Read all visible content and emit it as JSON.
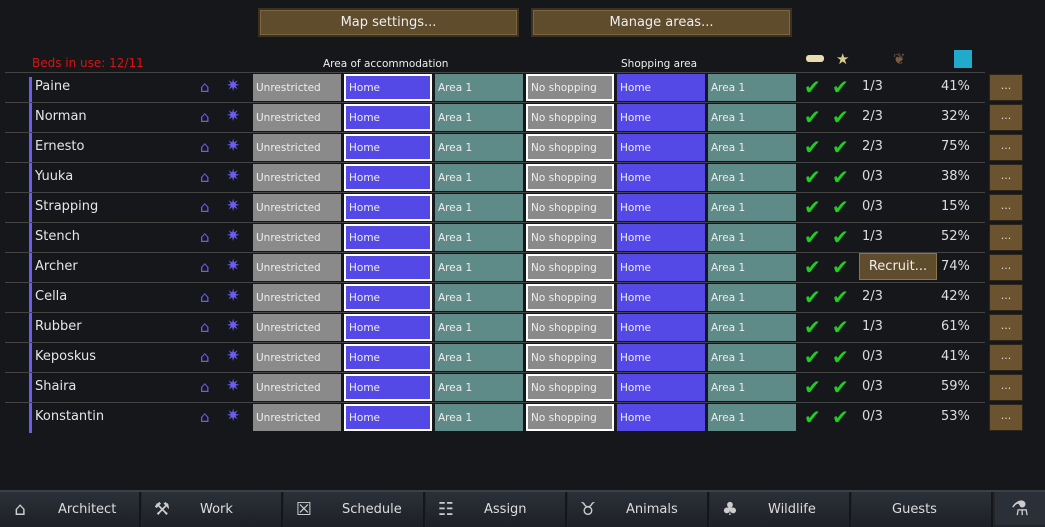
{
  "top": {
    "map_settings": "Map settings...",
    "manage_areas": "Manage areas..."
  },
  "beds": "Beds in use: 12/11",
  "headers": {
    "accommodation": "Area of accommodation",
    "shopping": "Shopping area"
  },
  "colors": {
    "home": "#5449e6",
    "area": "#5e8a88",
    "unrestricted": "#8a8a8a",
    "beds_warning": "#dd1111",
    "check": "#22cc22"
  },
  "cells": {
    "unrestricted": "Unrestricted",
    "home": "Home",
    "area": "Area 1",
    "no_shopping": "No shopping"
  },
  "rows": [
    {
      "name": "Paine",
      "fraction": "1/3",
      "percent": "41%"
    },
    {
      "name": "Norman",
      "fraction": "2/3",
      "percent": "32%"
    },
    {
      "name": "Ernesto",
      "fraction": "2/3",
      "percent": "75%"
    },
    {
      "name": "Yuuka",
      "fraction": "0/3",
      "percent": "38%"
    },
    {
      "name": "Strapping",
      "fraction": "0/3",
      "percent": "15%"
    },
    {
      "name": "Stench",
      "fraction": "1/3",
      "percent": "52%"
    },
    {
      "name": "Archer",
      "fraction": "",
      "percent": "74%"
    },
    {
      "name": "Cella",
      "fraction": "2/3",
      "percent": "42%"
    },
    {
      "name": "Rubber",
      "fraction": "1/3",
      "percent": "61%"
    },
    {
      "name": "Keposkus",
      "fraction": "0/3",
      "percent": "41%"
    },
    {
      "name": "Shaira",
      "fraction": "0/3",
      "percent": "59%"
    },
    {
      "name": "Konstantin",
      "fraction": "0/3",
      "percent": "53%"
    }
  ],
  "more_label": "...",
  "recruit": "Recruit...",
  "tabs": [
    {
      "label": "Architect",
      "icon": "house-icon"
    },
    {
      "label": "Work",
      "icon": "hammer-icon"
    },
    {
      "label": "Schedule",
      "icon": "schedule-icon"
    },
    {
      "label": "Assign",
      "icon": "assign-icon"
    },
    {
      "label": "Animals",
      "icon": "animal-head-icon"
    },
    {
      "label": "Wildlife",
      "icon": "trees-icon"
    },
    {
      "label": "Guests",
      "icon": ""
    }
  ]
}
